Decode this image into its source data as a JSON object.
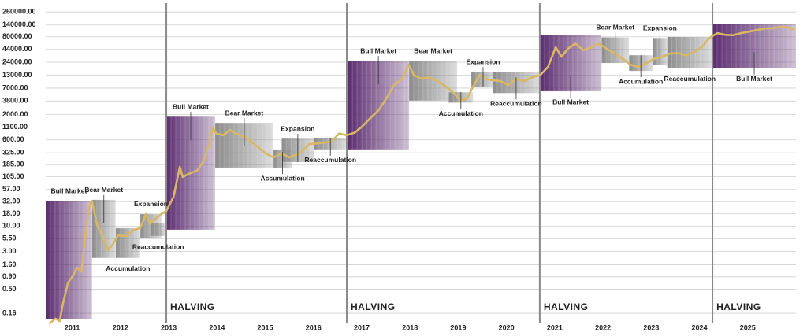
{
  "chart_data": {
    "type": "line",
    "log_scale": true,
    "grid": true,
    "ylim": [
      0.085,
      340000
    ],
    "yticks": [
      {
        "value": 0.16,
        "label": "0.16"
      },
      {
        "value": 0.5,
        "label": "0.50"
      },
      {
        "value": 0.9,
        "label": "0.90"
      },
      {
        "value": 1.6,
        "label": "1.60"
      },
      {
        "value": 3,
        "label": "3.00"
      },
      {
        "value": 5.5,
        "label": "5.50"
      },
      {
        "value": 10,
        "label": "10.00"
      },
      {
        "value": 18,
        "label": "18.00"
      },
      {
        "value": 32,
        "label": "32.00"
      },
      {
        "value": 57,
        "label": "57.00"
      },
      {
        "value": 105,
        "label": "105.00"
      },
      {
        "value": 185,
        "label": "185.00"
      },
      {
        "value": 325,
        "label": "325.00"
      },
      {
        "value": 600,
        "label": "600.00"
      },
      {
        "value": 1100,
        "label": "1100.00"
      },
      {
        "value": 2000,
        "label": "2000.00"
      },
      {
        "value": 3800,
        "label": "3800.00"
      },
      {
        "value": 7000,
        "label": "7000.00"
      },
      {
        "value": 13000,
        "label": "13000.00"
      },
      {
        "value": 24000,
        "label": "24000.00"
      },
      {
        "value": 44000,
        "label": "44000.00"
      },
      {
        "value": 80000,
        "label": "80000.00"
      },
      {
        "value": 140000,
        "label": "140000.00"
      },
      {
        "value": 260000,
        "label": "260000.00"
      }
    ],
    "xlim": [
      2010.45,
      2026.0
    ],
    "xticks": [
      2011,
      2012,
      2013,
      2014,
      2015,
      2016,
      2017,
      2018,
      2019,
      2020,
      2021,
      2022,
      2023,
      2024,
      2025
    ],
    "halvings": [
      {
        "x": 2012.95,
        "label": "HALVING"
      },
      {
        "x": 2016.69,
        "label": "HALVING"
      },
      {
        "x": 2020.69,
        "label": "HALVING"
      },
      {
        "x": 2024.27,
        "label": "HALVING"
      }
    ],
    "phases": [
      {
        "name": "Bull Market",
        "start": 2010.45,
        "end": 2011.41,
        "low": 0.12,
        "high": 33,
        "color": "#5b2c6f",
        "label_side": "above"
      },
      {
        "name": "Bear Market",
        "start": 2011.41,
        "end": 2011.9,
        "low": 2.2,
        "high": 35,
        "color": "#8c8c8c",
        "label_side": "above"
      },
      {
        "name": "Accumulation",
        "start": 2011.9,
        "end": 2012.41,
        "low": 2.2,
        "high": 9.1,
        "color": "#8c8c8c",
        "label_side": "below"
      },
      {
        "name": "Expansion",
        "start": 2012.41,
        "end": 2012.85,
        "low": 5.6,
        "high": 17.8,
        "color": "#8c8c8c",
        "label_side": "above"
      },
      {
        "name": "Reaccumulation",
        "start": 2012.61,
        "end": 2012.95,
        "low": 6.2,
        "high": 11.9,
        "color": "#8c8c8c",
        "label_side": "below"
      },
      {
        "name": "Bull Market",
        "start": 2012.95,
        "end": 2013.96,
        "low": 8.4,
        "high": 1815,
        "color": "#5b2c6f",
        "label_side": "above"
      },
      {
        "name": "Bear Market",
        "start": 2013.96,
        "end": 2015.17,
        "low": 160,
        "high": 1350,
        "color": "#8c8c8c",
        "label_side": "above"
      },
      {
        "name": "Accumulation",
        "start": 2015.17,
        "end": 2015.55,
        "low": 160,
        "high": 380,
        "color": "#8c8c8c",
        "label_side": "below"
      },
      {
        "name": "Expansion",
        "start": 2015.34,
        "end": 2016.01,
        "low": 208,
        "high": 640,
        "color": "#8c8c8c",
        "label_side": "above"
      },
      {
        "name": "Reaccumulation",
        "start": 2016.01,
        "end": 2016.69,
        "low": 380,
        "high": 660,
        "color": "#8c8c8c",
        "label_side": "below"
      },
      {
        "name": "Bull Market",
        "start": 2016.71,
        "end": 2017.98,
        "low": 380,
        "high": 25700,
        "color": "#5b2c6f",
        "label_side": "above"
      },
      {
        "name": "Bear Market",
        "start": 2017.98,
        "end": 2018.98,
        "low": 3850,
        "high": 25700,
        "color": "#8c8c8c",
        "label_side": "above"
      },
      {
        "name": "Accumulation",
        "start": 2018.8,
        "end": 2019.31,
        "low": 3500,
        "high": 5780,
        "color": "#8c8c8c",
        "label_side": "below"
      },
      {
        "name": "Expansion",
        "start": 2019.27,
        "end": 2019.76,
        "low": 7500,
        "high": 15200,
        "color": "#8c8c8c",
        "label_side": "above"
      },
      {
        "name": "Reaccumulation",
        "start": 2019.71,
        "end": 2020.69,
        "low": 5500,
        "high": 15200,
        "color": "#8c8c8c",
        "label_side": "below"
      },
      {
        "name": "Bull Market",
        "start": 2020.69,
        "end": 2021.97,
        "low": 6000,
        "high": 88000,
        "color": "#5b2c6f",
        "label_side": "below"
      },
      {
        "name": "Bear Market",
        "start": 2021.97,
        "end": 2022.54,
        "low": 23000,
        "high": 78000,
        "color": "#8c8c8c",
        "label_side": "above"
      },
      {
        "name": "Accumulation",
        "start": 2022.54,
        "end": 2023.03,
        "low": 15800,
        "high": 33500,
        "color": "#8c8c8c",
        "label_side": "below"
      },
      {
        "name": "Expansion",
        "start": 2023.03,
        "end": 2023.33,
        "low": 21000,
        "high": 76000,
        "color": "#8c8c8c",
        "label_side": "above"
      },
      {
        "name": "Reaccumulation",
        "start": 2023.33,
        "end": 2024.27,
        "low": 18000,
        "high": 80000,
        "color": "#8c8c8c",
        "label_side": "below"
      },
      {
        "name": "Bull Market",
        "start": 2024.27,
        "end": 2026.0,
        "low": 18000,
        "high": 148000,
        "color": "#5b2c6f",
        "label_side": "below"
      }
    ],
    "x": [
      2010.52,
      2010.65,
      2010.74,
      2010.81,
      2010.91,
      2011.02,
      2011.1,
      2011.19,
      2011.27,
      2011.35,
      2011.41,
      2011.51,
      2011.63,
      2011.74,
      2011.84,
      2011.95,
      2012.11,
      2012.28,
      2012.41,
      2012.53,
      2012.61,
      2012.72,
      2012.85,
      2012.95,
      2013.1,
      2013.23,
      2013.29,
      2013.42,
      2013.59,
      2013.72,
      2013.85,
      2013.91,
      2013.99,
      2014.13,
      2014.27,
      2014.4,
      2014.6,
      2014.81,
      2015.01,
      2015.17,
      2015.34,
      2015.5,
      2015.71,
      2015.91,
      2016.12,
      2016.37,
      2016.53,
      2016.69,
      2016.86,
      2017.02,
      2017.18,
      2017.35,
      2017.51,
      2017.67,
      2017.84,
      2017.97,
      2018.08,
      2018.24,
      2018.41,
      2018.57,
      2018.73,
      2018.9,
      2019.06,
      2019.18,
      2019.31,
      2019.44,
      2019.55,
      2019.72,
      2019.88,
      2020.04,
      2020.21,
      2020.37,
      2020.53,
      2020.7,
      2020.86,
      2021.02,
      2021.14,
      2021.27,
      2021.43,
      2021.59,
      2021.76,
      2021.92,
      2022.08,
      2022.25,
      2022.41,
      2022.57,
      2022.74,
      2022.9,
      2023.06,
      2023.23,
      2023.39,
      2023.55,
      2023.72,
      2023.88,
      2024.04,
      2024.21,
      2024.37,
      2024.53,
      2024.7,
      2024.86,
      2025.03,
      2025.19,
      2025.35,
      2025.52,
      2025.68,
      2025.84,
      2025.97
    ],
    "series": [
      {
        "color": "#d8b865",
        "values": [
          0.096,
          0.124,
          0.11,
          0.26,
          0.67,
          0.97,
          1.4,
          1.15,
          6.2,
          25.8,
          33,
          10.9,
          6.2,
          3.2,
          4.2,
          6.5,
          6.2,
          8.4,
          9.1,
          17.8,
          11,
          14,
          17.8,
          20.7,
          40,
          167,
          103,
          120,
          140,
          217,
          550,
          1076,
          810,
          750,
          964,
          810,
          670,
          457,
          315,
          261,
          315,
          261,
          315,
          492,
          510,
          550,
          810,
          750,
          850,
          1160,
          1690,
          2450,
          4290,
          8090,
          10900,
          21300,
          13000,
          10900,
          11700,
          9700,
          7800,
          5570,
          3840,
          4300,
          7500,
          13000,
          10900,
          10100,
          9700,
          8100,
          10900,
          9700,
          11700,
          13000,
          19000,
          48500,
          31000,
          45000,
          58000,
          42000,
          48500,
          58000,
          45000,
          36000,
          28000,
          21300,
          19000,
          22900,
          28000,
          31000,
          36000,
          37000,
          33000,
          38000,
          48500,
          76000,
          95000,
          88000,
          86000,
          95000,
          102000,
          110000,
          118000,
          120000,
          128000,
          125000,
          110000
        ]
      }
    ]
  }
}
